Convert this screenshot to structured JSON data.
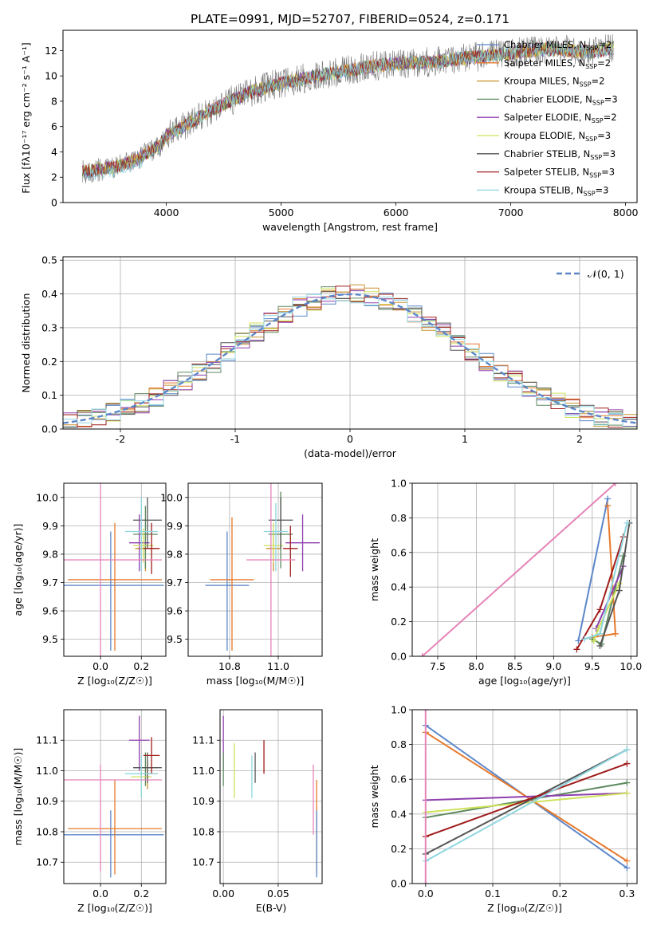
{
  "figure": {
    "title": "PLATE=0991, MJD=52707, FIBERID=0524, z=0.171"
  },
  "colors": {
    "Chabrier MILES": "#5b87c9",
    "Salpeter MILES": "#e6782a",
    "Kroupa MILES": "#c8922e",
    "Chabrier ELODIE": "#5e8a60",
    "Salpeter ELODIE": "#8e3fae",
    "Kroupa ELODIE": "#cfe15a",
    "Chabrier STELIB": "#555555",
    "Salpeter STELIB": "#a01c1c",
    "Kroupa STELIB": "#8fd6e0",
    "normal": "#5b87c9",
    "pink": "#e584b8",
    "data": "#7a7a7a"
  },
  "legend_spectrum": [
    {
      "label": "Chabrier MILES, N",
      "sub": "SSP",
      "tail": "=2"
    },
    {
      "label": "Salpeter MILES, N",
      "sub": "SSP",
      "tail": "=2"
    },
    {
      "label": "Kroupa MILES, N",
      "sub": "SSP",
      "tail": "=2"
    },
    {
      "label": "Chabrier ELODIE, N",
      "sub": "SSP",
      "tail": "=3"
    },
    {
      "label": "Salpeter ELODIE, N",
      "sub": "SSP",
      "tail": "=2"
    },
    {
      "label": "Kroupa ELODIE, N",
      "sub": "SSP",
      "tail": "=3"
    },
    {
      "label": "Chabrier STELIB, N",
      "sub": "SSP",
      "tail": "=3"
    },
    {
      "label": "Salpeter STELIB, N",
      "sub": "SSP",
      "tail": "=3"
    },
    {
      "label": "Kroupa STELIB, N",
      "sub": "SSP",
      "tail": "=3"
    }
  ],
  "legend_hist": "𝒩(0, 1)",
  "chart_data": [
    {
      "id": "spectrum",
      "type": "line",
      "xlabel": "wavelength [Angstrom, rest frame]",
      "ylabel": "Flux [f",
      "ylabel_sub": "λ",
      "ylabel_rest": "10⁻¹⁷ erg cm⁻² s⁻¹ A⁻¹]",
      "xlim": [
        3100,
        8100
      ],
      "ylim": [
        0,
        13.6
      ],
      "xticks": [
        4000,
        5000,
        6000,
        7000,
        8000
      ],
      "yticks": [
        0,
        2,
        4,
        6,
        8,
        10,
        12
      ],
      "continuum": [
        [
          3270,
          2.4
        ],
        [
          3400,
          2.6
        ],
        [
          3550,
          2.8
        ],
        [
          3700,
          3.2
        ],
        [
          3850,
          4.0
        ],
        [
          3950,
          4.6
        ],
        [
          4000,
          5.3
        ],
        [
          4150,
          6.0
        ],
        [
          4300,
          6.8
        ],
        [
          4500,
          7.8
        ],
        [
          4700,
          8.6
        ],
        [
          4900,
          9.2
        ],
        [
          5100,
          9.6
        ],
        [
          5300,
          10.0
        ],
        [
          5500,
          10.3
        ],
        [
          5700,
          10.6
        ],
        [
          5900,
          10.9
        ],
        [
          6100,
          11.0
        ],
        [
          6300,
          11.1
        ],
        [
          6500,
          11.3
        ],
        [
          6700,
          11.5
        ],
        [
          6900,
          11.7
        ],
        [
          7100,
          11.9
        ],
        [
          7300,
          12.1
        ],
        [
          7500,
          12.0
        ],
        [
          7700,
          11.9
        ],
        [
          7900,
          12.2
        ]
      ]
    },
    {
      "id": "histogram",
      "type": "line",
      "xlabel": "(data-model)/error",
      "ylabel": "Normed distribution",
      "xlim": [
        -2.5,
        2.5
      ],
      "ylim": [
        0,
        0.51
      ],
      "xticks": [
        -2,
        -1,
        0,
        1,
        2
      ],
      "yticks": [
        0.0,
        0.1,
        0.2,
        0.3,
        0.4,
        0.5
      ],
      "grid": true,
      "normal_mean": 0,
      "normal_sigma": 1
    },
    {
      "id": "age_vs_Z",
      "type": "scatter",
      "xlabel": "Z [log₁₀(Z/Z☉)]",
      "ylabel": "age  [log₁₀(age/yr)]",
      "xlim": [
        -0.18,
        0.32
      ],
      "ylim": [
        9.44,
        10.05
      ],
      "xticks": [
        0.0,
        0.2
      ],
      "yticks": [
        9.5,
        9.6,
        9.7,
        9.8,
        9.9,
        10.0
      ],
      "points": [
        {
          "series": "Chabrier MILES",
          "x": 0.05,
          "y": 9.69,
          "xerr": 0.26,
          "yerr_lo": 0.23,
          "yerr_hi": 0.19
        },
        {
          "series": "Salpeter MILES",
          "x": 0.07,
          "y": 9.71,
          "xerr": 0.23,
          "yerr_lo": 0.25,
          "yerr_hi": 0.2
        },
        {
          "series": "Kroupa MILES",
          "x": 0.22,
          "y": 9.82,
          "xerr": 0.05,
          "yerr_lo": 0.08,
          "yerr_hi": 0.06
        },
        {
          "series": "Chabrier ELODIE",
          "x": 0.22,
          "y": 9.87,
          "xerr": 0.06,
          "yerr_lo": 0.12,
          "yerr_hi": 0.1
        },
        {
          "series": "Salpeter ELODIE",
          "x": 0.19,
          "y": 9.84,
          "xerr": 0.05,
          "yerr_lo": 0.1,
          "yerr_hi": 0.1
        },
        {
          "series": "Kroupa ELODIE",
          "x": 0.21,
          "y": 9.83,
          "xerr": 0.05,
          "yerr_lo": 0.06,
          "yerr_hi": 0.06
        },
        {
          "series": "Chabrier STELIB",
          "x": 0.23,
          "y": 9.92,
          "xerr": 0.07,
          "yerr_lo": 0.1,
          "yerr_hi": 0.08
        },
        {
          "series": "Salpeter STELIB",
          "x": 0.25,
          "y": 9.82,
          "xerr": 0.04,
          "yerr_lo": 0.09,
          "yerr_hi": 0.09
        },
        {
          "series": "Kroupa STELIB",
          "x": 0.2,
          "y": 9.88,
          "xerr": 0.08,
          "yerr_lo": 0.14,
          "yerr_hi": 0.12
        },
        {
          "series": "pink",
          "x": 0.0,
          "y": 9.78,
          "xerr": 0.3,
          "yerr_lo": 0.35,
          "yerr_hi": 0.3
        }
      ]
    },
    {
      "id": "age_vs_mass",
      "type": "scatter",
      "xlabel": "mass [log₁₀(M/M☉)]",
      "ylabel": "",
      "xlim": [
        10.63,
        11.18
      ],
      "ylim": [
        9.44,
        10.05
      ],
      "xticks": [
        10.8,
        11.0
      ],
      "yticks": [
        9.5,
        9.6,
        9.7,
        9.8,
        9.9,
        10.0
      ],
      "points": [
        {
          "series": "Chabrier MILES",
          "x": 10.79,
          "y": 9.69,
          "xerr": 0.09,
          "yerr_lo": 0.23,
          "yerr_hi": 0.19
        },
        {
          "series": "Salpeter MILES",
          "x": 10.81,
          "y": 9.71,
          "xerr": 0.09,
          "yerr_lo": 0.25,
          "yerr_hi": 0.22
        },
        {
          "series": "Kroupa MILES",
          "x": 10.98,
          "y": 9.82,
          "xerr": 0.03,
          "yerr_lo": 0.08,
          "yerr_hi": 0.06
        },
        {
          "series": "Chabrier ELODIE",
          "x": 11.01,
          "y": 9.87,
          "xerr": 0.05,
          "yerr_lo": 0.12,
          "yerr_hi": 0.15
        },
        {
          "series": "Salpeter ELODIE",
          "x": 11.1,
          "y": 9.84,
          "xerr": 0.07,
          "yerr_lo": 0.1,
          "yerr_hi": 0.1
        },
        {
          "series": "Kroupa ELODIE",
          "x": 10.98,
          "y": 9.83,
          "xerr": 0.04,
          "yerr_lo": 0.06,
          "yerr_hi": 0.08
        },
        {
          "series": "Chabrier STELIB",
          "x": 11.01,
          "y": 9.92,
          "xerr": 0.05,
          "yerr_lo": 0.1,
          "yerr_hi": 0.08
        },
        {
          "series": "Salpeter STELIB",
          "x": 11.05,
          "y": 9.82,
          "xerr": 0.03,
          "yerr_lo": 0.1,
          "yerr_hi": 0.08
        },
        {
          "series": "Kroupa STELIB",
          "x": 10.99,
          "y": 9.88,
          "xerr": 0.05,
          "yerr_lo": 0.14,
          "yerr_hi": 0.1
        },
        {
          "series": "pink",
          "x": 10.97,
          "y": 9.78,
          "xerr": 0.1,
          "yerr_lo": 0.35,
          "yerr_hi": 0.3
        }
      ]
    },
    {
      "id": "weight_vs_age",
      "type": "line",
      "xlabel": "age  [log₁₀(age/yr)]",
      "ylabel": "mass weight",
      "xlim": [
        7.17,
        10.08
      ],
      "ylim": [
        0,
        1
      ],
      "xticks": [
        7.5,
        8.0,
        8.5,
        9.0,
        9.5,
        10.0
      ],
      "yticks": [
        0.0,
        0.2,
        0.4,
        0.6,
        0.8,
        1.0
      ],
      "grid": true,
      "series": [
        {
          "name": "Chabrier MILES",
          "points": [
            [
              9.32,
              0.09
            ],
            [
              9.7,
              0.91
            ]
          ]
        },
        {
          "name": "Salpeter MILES",
          "points": [
            [
              9.5,
              0.11
            ],
            [
              9.8,
              0.13
            ],
            [
              9.7,
              0.87
            ]
          ]
        },
        {
          "name": "Chabrier ELODIE",
          "points": [
            [
              9.5,
              0.1
            ],
            [
              9.62,
              0.07
            ],
            [
              9.9,
              0.58
            ]
          ]
        },
        {
          "name": "Salpeter ELODIE",
          "points": [
            [
              9.55,
              0.16
            ],
            [
              9.9,
              0.52
            ]
          ]
        },
        {
          "name": "Kroupa ELODIE",
          "points": [
            [
              9.52,
              0.09
            ],
            [
              9.58,
              0.16
            ],
            [
              9.85,
              0.42
            ]
          ]
        },
        {
          "name": "Chabrier STELIB",
          "points": [
            [
              9.6,
              0.06
            ],
            [
              9.85,
              0.38
            ],
            [
              9.98,
              0.77
            ]
          ]
        },
        {
          "name": "Salpeter STELIB",
          "points": [
            [
              9.3,
              0.04
            ],
            [
              9.6,
              0.27
            ],
            [
              9.9,
              0.69
            ]
          ]
        },
        {
          "name": "Kroupa STELIB",
          "points": [
            [
              9.4,
              0.1
            ],
            [
              9.6,
              0.13
            ],
            [
              9.95,
              0.77
            ]
          ]
        },
        {
          "name": "pink",
          "points": [
            [
              7.3,
              0.0
            ],
            [
              9.8,
              1.0
            ]
          ]
        }
      ]
    },
    {
      "id": "mass_vs_Z",
      "type": "scatter",
      "xlabel": "Z [log₁₀(Z/Z☉)]",
      "ylabel": "mass [log₁₀(M/M☉)]",
      "xlim": [
        -0.18,
        0.32
      ],
      "ylim": [
        10.63,
        11.2
      ],
      "xticks": [
        0.0,
        0.2
      ],
      "yticks": [
        10.7,
        10.8,
        10.9,
        11.0,
        11.1
      ],
      "points": [
        {
          "series": "Chabrier MILES",
          "x": 0.05,
          "y": 10.79,
          "xerr": 0.26,
          "yerr_lo": 0.14,
          "yerr_hi": 0.08
        },
        {
          "series": "Salpeter MILES",
          "x": 0.07,
          "y": 10.81,
          "xerr": 0.23,
          "yerr_lo": 0.15,
          "yerr_hi": 0.16
        },
        {
          "series": "Kroupa MILES",
          "x": 0.23,
          "y": 10.99,
          "xerr": 0.05,
          "yerr_lo": 0.05,
          "yerr_hi": 0.04
        },
        {
          "series": "Chabrier ELODIE",
          "x": 0.22,
          "y": 11.01,
          "xerr": 0.06,
          "yerr_lo": 0.06,
          "yerr_hi": 0.05
        },
        {
          "series": "Salpeter ELODIE",
          "x": 0.19,
          "y": 11.1,
          "xerr": 0.05,
          "yerr_lo": 0.1,
          "yerr_hi": 0.08
        },
        {
          "series": "Kroupa ELODIE",
          "x": 0.2,
          "y": 10.98,
          "xerr": 0.05,
          "yerr_lo": 0.07,
          "yerr_hi": 0.05
        },
        {
          "series": "Chabrier STELIB",
          "x": 0.23,
          "y": 11.01,
          "xerr": 0.07,
          "yerr_lo": 0.05,
          "yerr_hi": 0.05
        },
        {
          "series": "Salpeter STELIB",
          "x": 0.25,
          "y": 11.05,
          "xerr": 0.04,
          "yerr_lo": 0.06,
          "yerr_hi": 0.06
        },
        {
          "series": "Kroupa STELIB",
          "x": 0.2,
          "y": 10.99,
          "xerr": 0.08,
          "yerr_lo": 0.08,
          "yerr_hi": 0.06
        },
        {
          "series": "pink",
          "x": 0.0,
          "y": 10.97,
          "xerr": 0.3,
          "yerr_lo": 0.3,
          "yerr_hi": 0.05
        }
      ]
    },
    {
      "id": "mass_vs_ebv",
      "type": "scatter",
      "xlabel": "E(B-V)",
      "ylabel": "",
      "xlim": [
        -0.003,
        0.09
      ],
      "ylim": [
        10.63,
        11.2
      ],
      "xticks": [
        0.0,
        0.05
      ],
      "yticks": [
        10.7,
        10.8,
        10.9,
        11.0,
        11.1
      ],
      "points": [
        {
          "series": "Salpeter ELODIE",
          "x": 0.0,
          "y": 11.1,
          "yerr_lo": 0.1,
          "yerr_hi": 0.08
        },
        {
          "series": "Chabrier ELODIE",
          "x": 0.0,
          "y": 11.01,
          "yerr_lo": 0.06,
          "yerr_hi": 0.05
        },
        {
          "series": "Kroupa ELODIE",
          "x": 0.01,
          "y": 10.99,
          "yerr_lo": 0.08,
          "yerr_hi": 0.1
        },
        {
          "series": "Kroupa STELIB",
          "x": 0.026,
          "y": 10.99,
          "yerr_lo": 0.08,
          "yerr_hi": 0.06
        },
        {
          "series": "Chabrier STELIB",
          "x": 0.029,
          "y": 11.01,
          "yerr_lo": 0.05,
          "yerr_hi": 0.05
        },
        {
          "series": "Salpeter STELIB",
          "x": 0.037,
          "y": 11.05,
          "yerr_lo": 0.06,
          "yerr_hi": 0.05
        },
        {
          "series": "pink",
          "x": 0.082,
          "y": 10.95,
          "yerr_lo": 0.16,
          "yerr_hi": 0.07
        },
        {
          "series": "Salpeter MILES",
          "x": 0.085,
          "y": 10.81,
          "yerr_lo": 0.15,
          "yerr_hi": 0.16
        },
        {
          "series": "Chabrier MILES",
          "x": 0.085,
          "y": 10.79,
          "yerr_lo": 0.14,
          "yerr_hi": 0.08
        }
      ]
    },
    {
      "id": "weight_vs_Z",
      "type": "line",
      "xlabel": "Z [log₁₀(Z/Z☉)]",
      "ylabel": "mass weight",
      "xlim": [
        -0.02,
        0.315
      ],
      "ylim": [
        0,
        1
      ],
      "xticks": [
        0.0,
        0.1,
        0.2,
        0.3
      ],
      "yticks": [
        0.0,
        0.2,
        0.4,
        0.6,
        0.8,
        1.0
      ],
      "grid": true,
      "series": [
        {
          "name": "Chabrier MILES",
          "points": [
            [
              0.0,
              0.91
            ],
            [
              0.3,
              0.09
            ]
          ]
        },
        {
          "name": "Salpeter MILES",
          "points": [
            [
              0.0,
              0.87
            ],
            [
              0.3,
              0.13
            ]
          ]
        },
        {
          "name": "Chabrier ELODIE",
          "points": [
            [
              0.0,
              0.38
            ],
            [
              0.3,
              0.58
            ]
          ]
        },
        {
          "name": "Salpeter ELODIE",
          "points": [
            [
              0.0,
              0.48
            ],
            [
              0.3,
              0.52
            ]
          ]
        },
        {
          "name": "Kroupa ELODIE",
          "points": [
            [
              0.0,
              0.41
            ],
            [
              0.3,
              0.52
            ]
          ]
        },
        {
          "name": "Chabrier STELIB",
          "points": [
            [
              0.0,
              0.17
            ],
            [
              0.3,
              0.77
            ]
          ]
        },
        {
          "name": "Salpeter STELIB",
          "points": [
            [
              0.0,
              0.27
            ],
            [
              0.3,
              0.69
            ]
          ]
        },
        {
          "name": "Kroupa STELIB",
          "points": [
            [
              0.0,
              0.13
            ],
            [
              0.3,
              0.77
            ]
          ]
        },
        {
          "name": "pink",
          "points": [
            [
              0.0,
              0.0
            ],
            [
              0.0,
              1.0
            ]
          ]
        }
      ]
    }
  ]
}
